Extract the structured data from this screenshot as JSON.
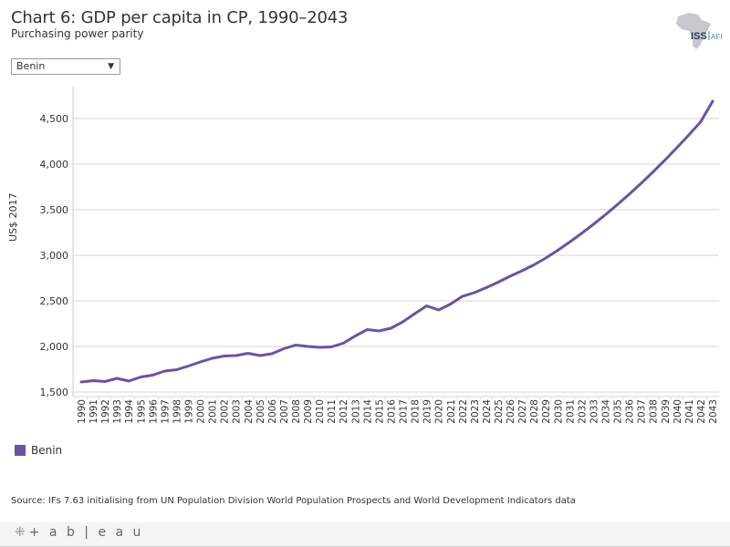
{
  "header": {
    "title": "Chart 6: GDP per capita in CP, 1990–2043",
    "subtitle": "Purchasing power parity"
  },
  "logo": {
    "text_main": "ISS",
    "text_sub": "AFI",
    "icon": "africa-map-icon"
  },
  "filter": {
    "selected": "Benin",
    "icon": "chevron-down-icon",
    "caret": "▼"
  },
  "legend": {
    "items": [
      {
        "label": "Benin",
        "color": "#6b52a3"
      }
    ]
  },
  "source": "Source: IFs 7.63 initialising from UN Population Division World Population Prospects and World Development Indicators data",
  "footer": {
    "brand": "+ a b | e a u",
    "brand_icon": "tableau-logo-icon",
    "brand_mark": "⁜"
  },
  "colors": {
    "series": "#6b52a3",
    "grid": "#d4d4d4",
    "axis": "#c8c8c8",
    "text": "#333333"
  },
  "chart_data": {
    "type": "line",
    "title": "Chart 6: GDP per capita in CP, 1990–2043",
    "subtitle": "Purchasing power parity",
    "xlabel": "",
    "ylabel": "US$ 2017",
    "ylim": [
      1450,
      4850
    ],
    "yticks": [
      1500,
      2000,
      2500,
      3000,
      3500,
      4000,
      4500
    ],
    "ytick_labels": [
      "1,500",
      "2,000",
      "2,500",
      "3,000",
      "3,500",
      "4,000",
      "4,500"
    ],
    "grid": true,
    "legend_position": "bottom-left",
    "x": [
      1990,
      1991,
      1992,
      1993,
      1994,
      1995,
      1996,
      1997,
      1998,
      1999,
      2000,
      2001,
      2002,
      2003,
      2004,
      2005,
      2006,
      2007,
      2008,
      2009,
      2010,
      2011,
      2012,
      2013,
      2014,
      2015,
      2016,
      2017,
      2018,
      2019,
      2020,
      2021,
      2022,
      2023,
      2024,
      2025,
      2026,
      2027,
      2028,
      2029,
      2030,
      2031,
      2032,
      2033,
      2034,
      2035,
      2036,
      2037,
      2038,
      2039,
      2040,
      2041,
      2042,
      2043
    ],
    "series": [
      {
        "name": "Benin",
        "color": "#6b52a3",
        "values": [
          1610,
          1625,
          1615,
          1650,
          1620,
          1665,
          1685,
          1730,
          1745,
          1785,
          1830,
          1870,
          1895,
          1900,
          1925,
          1900,
          1920,
          1975,
          2015,
          2000,
          1990,
          1995,
          2035,
          2115,
          2185,
          2170,
          2200,
          2270,
          2360,
          2445,
          2400,
          2465,
          2550,
          2590,
          2645,
          2705,
          2770,
          2830,
          2895,
          2970,
          3055,
          3145,
          3240,
          3340,
          3445,
          3555,
          3670,
          3790,
          3915,
          4045,
          4180,
          4320,
          4465,
          4690
        ]
      }
    ]
  }
}
